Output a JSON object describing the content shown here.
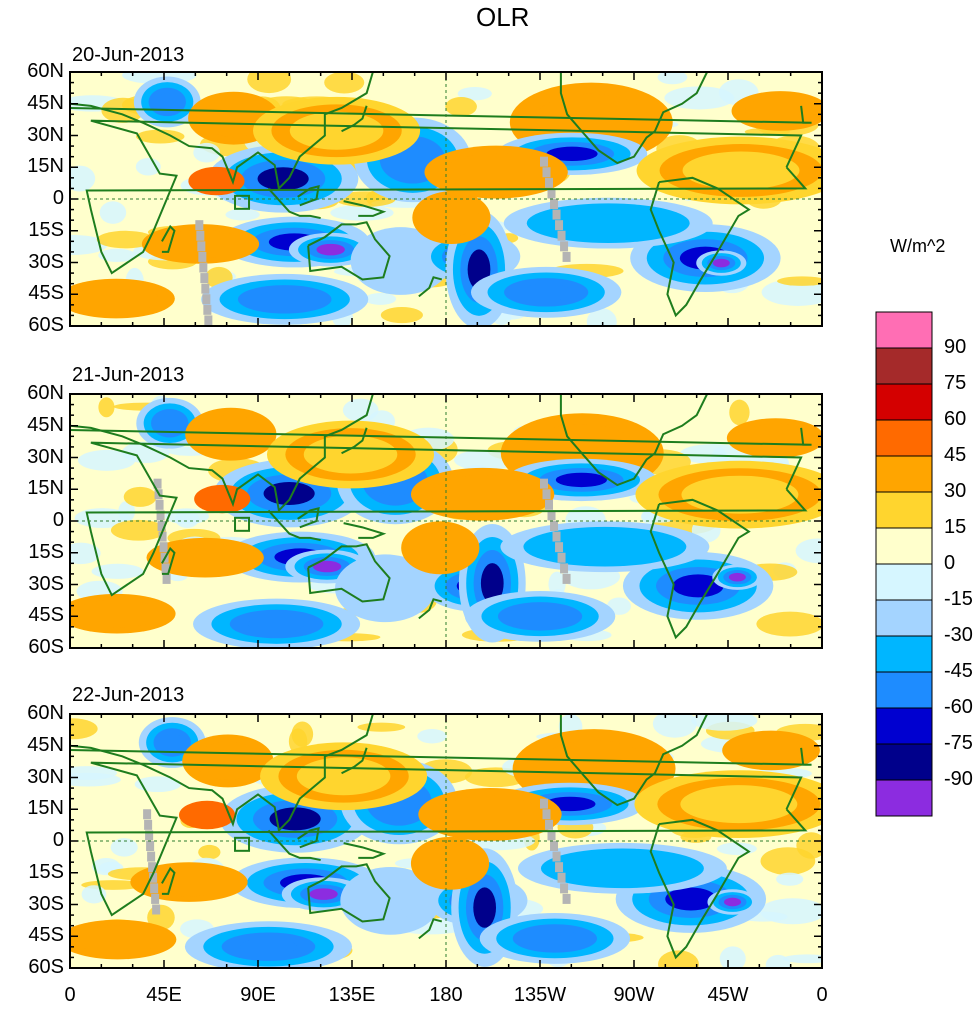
{
  "title": "OLR",
  "panels": [
    {
      "date": "20-Jun-2013"
    },
    {
      "date": "21-Jun-2013"
    },
    {
      "date": "22-Jun-2013"
    }
  ],
  "lat_labels": [
    "60N",
    "45N",
    "30N",
    "15N",
    "0",
    "15S",
    "30S",
    "45S",
    "60S"
  ],
  "lon_labels": [
    "0",
    "45E",
    "90E",
    "135E",
    "180",
    "135W",
    "90W",
    "45W",
    "0"
  ],
  "colorbar": {
    "units": "W/m^2",
    "levels": [
      "90",
      "75",
      "60",
      "45",
      "30",
      "15",
      "0",
      "-15",
      "-30",
      "-45",
      "-60",
      "-75",
      "-90"
    ],
    "colors": [
      "#ff6eb4",
      "#a52a2a",
      "#d40000",
      "#ff6a00",
      "#ffa500",
      "#ffd52e",
      "#ffffcc",
      "#d6f6ff",
      "#a4d4ff",
      "#00b6ff",
      "#1e8cff",
      "#0000d0",
      "#00008b",
      "#8c2ce0"
    ]
  },
  "map_colors": {
    "coast": "#1e7d1e",
    "missing": "#b4b4b4",
    "background": "#ffffcc"
  }
}
